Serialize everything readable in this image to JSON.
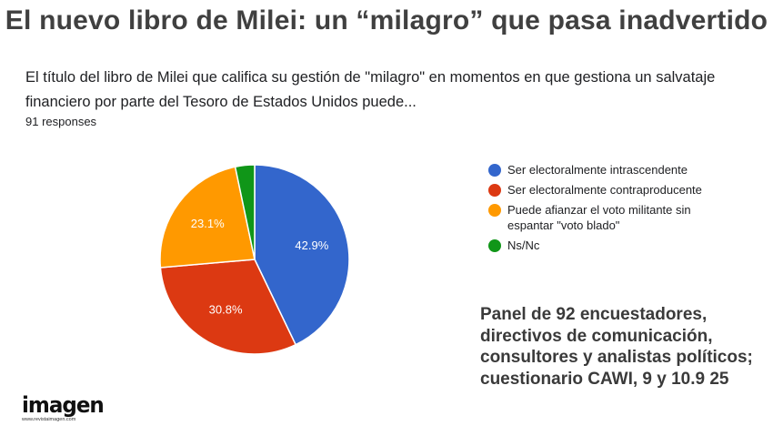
{
  "headline": "El nuevo libro de Milei: un “milagro” que pasa inadvertido",
  "question": "El título del libro de Milei que califica su gestión de \"milagro\" en momentos en que gestiona un salvataje financiero por parte del Tesoro de Estados Unidos puede...",
  "responses_label": "91 responses",
  "panel_note": "Panel de 92 encuestadores, directivos de comunicación, consultores y analistas políticos; cuestionario CAWI, 9 y 10.9 25",
  "brand": {
    "name": "imagen",
    "url": "www.revistaimagen.com"
  },
  "chart_data": {
    "type": "pie",
    "title": "",
    "categories": [
      "Ser electoralmente intrascendente",
      "Ser electoralmente contraproducente",
      "Puede afianzar el voto militante sin espantar \"voto blado\"",
      "Ns/Nc"
    ],
    "values": [
      42.9,
      30.8,
      23.1,
      3.3
    ],
    "labels": [
      "42.9%",
      "30.8%",
      "23.1%",
      ""
    ],
    "colors": [
      "#3366cc",
      "#dc3912",
      "#ff9900",
      "#109618"
    ],
    "start_angle_deg": 90,
    "direction": "clockwise",
    "legend_position": "right"
  }
}
